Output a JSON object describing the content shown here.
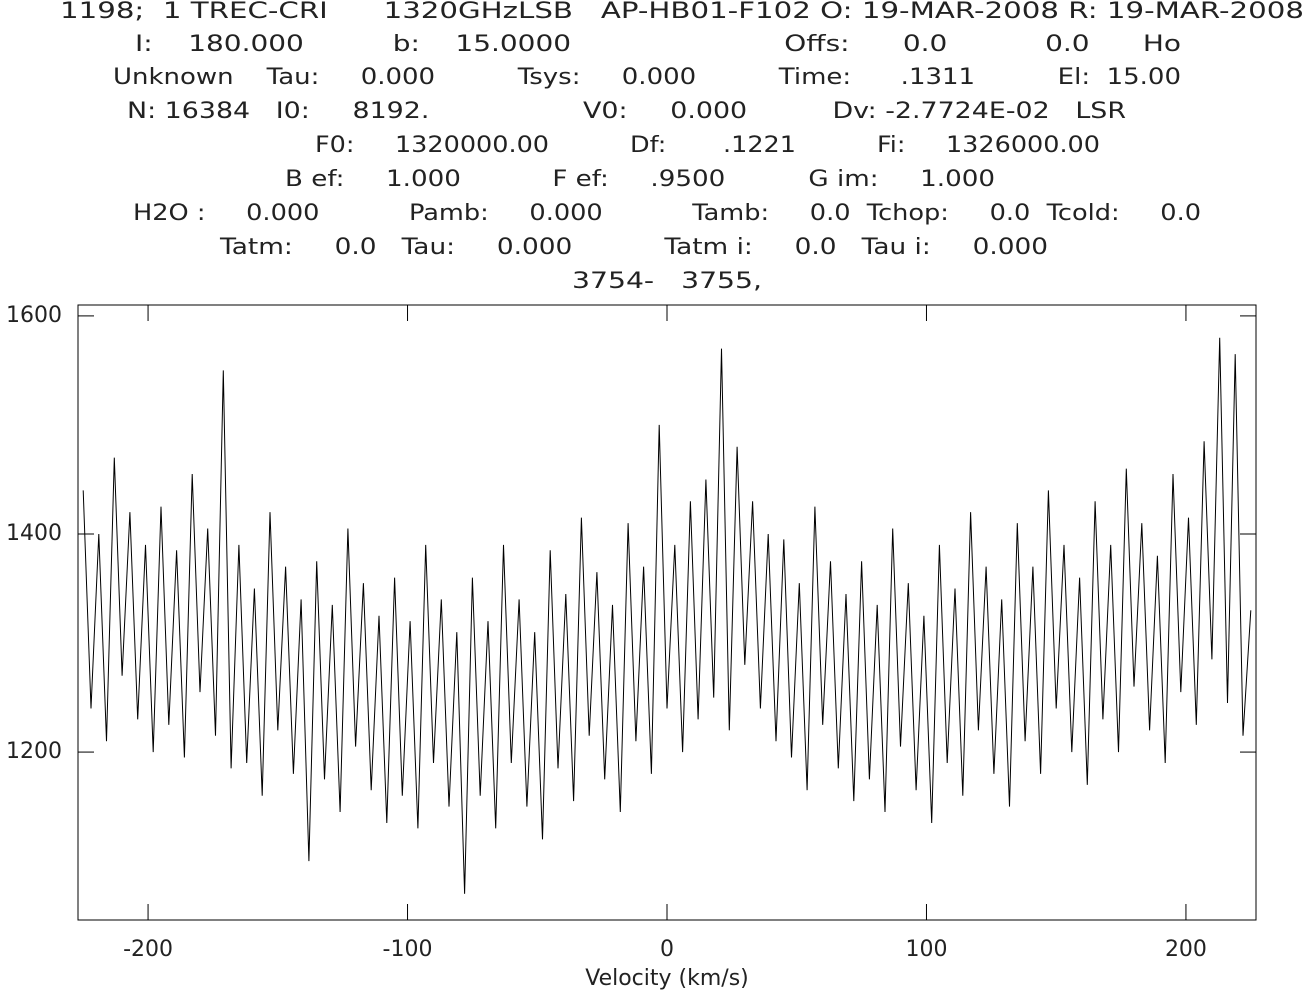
{
  "chart_data": {
    "type": "line",
    "header_lines": [
      "1198;  1 TREC-CRI      1320GHzLSB   AP-HB01-F102 O: 19-MAR-2008 R: 19-MAR-2008",
      "I:    180.000          b:    15.0000                        Offs:      0.0           0.0      Ho",
      "Unknown    Tau:     0.000          Tsys:     0.000          Time:      .1311          El:  15.00",
      "N: 16384   I0:     8192.                  V0:     0.000          Dv: -2.7724E-02   LSR",
      "F0:     1320000.00          Df:       .1221          Fi:     1326000.00",
      "B ef:     1.000           F ef:     .9500          G im:     1.000",
      "H2O :     0.000           Pamb:     0.000           Tamb:     0.0  Tchop:     0.0  Tcold:     0.0",
      "Tatm:     0.0   Tau:     0.000           Tatm i:     0.0   Tau i:     0.000",
      "3754-   3755,"
    ],
    "x_label": "Velocity (km/s)",
    "color": "#000000",
    "xlim": [
      -227,
      227
    ],
    "xticks": [
      -200,
      -100,
      0,
      100,
      200
    ],
    "ylim": [
      1046,
      1610
    ],
    "yticks": [
      1200,
      1400,
      1600
    ],
    "x": [
      -225,
      -222,
      -219,
      -216,
      -213,
      -210,
      -207,
      -204,
      -201,
      -198,
      -195,
      -192,
      -189,
      -186,
      -183,
      -180,
      -177,
      -174,
      -171,
      -168,
      -165,
      -162,
      -159,
      -156,
      -153,
      -150,
      -147,
      -144,
      -141,
      -138,
      -135,
      -132,
      -129,
      -126,
      -123,
      -120,
      -117,
      -114,
      -111,
      -108,
      -105,
      -102,
      -99,
      -96,
      -93,
      -90,
      -87,
      -84,
      -81,
      -78,
      -75,
      -72,
      -69,
      -66,
      -63,
      -60,
      -57,
      -54,
      -51,
      -48,
      -45,
      -42,
      -39,
      -36,
      -33,
      -30,
      -27,
      -24,
      -21,
      -18,
      -15,
      -12,
      -9,
      -6,
      -3,
      0,
      3,
      6,
      9,
      12,
      15,
      18,
      21,
      24,
      27,
      30,
      33,
      36,
      39,
      42,
      45,
      48,
      51,
      54,
      57,
      60,
      63,
      66,
      69,
      72,
      75,
      78,
      81,
      84,
      87,
      90,
      93,
      96,
      99,
      102,
      105,
      108,
      111,
      114,
      117,
      120,
      123,
      126,
      129,
      132,
      135,
      138,
      141,
      144,
      147,
      150,
      153,
      156,
      159,
      162,
      165,
      168,
      171,
      174,
      177,
      180,
      183,
      186,
      189,
      192,
      195,
      198,
      201,
      204,
      207,
      210,
      213,
      216,
      219,
      222,
      225
    ],
    "values": [
      1440,
      1240,
      1400,
      1210,
      1470,
      1270,
      1420,
      1230,
      1390,
      1200,
      1425,
      1225,
      1385,
      1195,
      1455,
      1255,
      1405,
      1215,
      1550,
      1185,
      1390,
      1190,
      1350,
      1160,
      1420,
      1220,
      1370,
      1180,
      1340,
      1100,
      1375,
      1175,
      1335,
      1145,
      1405,
      1205,
      1355,
      1165,
      1325,
      1135,
      1360,
      1160,
      1320,
      1130,
      1390,
      1190,
      1340,
      1150,
      1310,
      1070,
      1360,
      1160,
      1320,
      1130,
      1390,
      1190,
      1340,
      1150,
      1310,
      1120,
      1385,
      1185,
      1345,
      1155,
      1415,
      1215,
      1365,
      1175,
      1335,
      1145,
      1410,
      1210,
      1370,
      1180,
      1500,
      1240,
      1390,
      1200,
      1430,
      1230,
      1450,
      1250,
      1570,
      1220,
      1480,
      1280,
      1430,
      1240,
      1400,
      1210,
      1395,
      1195,
      1355,
      1165,
      1425,
      1225,
      1375,
      1185,
      1345,
      1155,
      1375,
      1175,
      1335,
      1145,
      1405,
      1205,
      1355,
      1165,
      1325,
      1135,
      1390,
      1190,
      1350,
      1160,
      1420,
      1220,
      1370,
      1180,
      1340,
      1150,
      1410,
      1210,
      1370,
      1180,
      1440,
      1240,
      1390,
      1200,
      1360,
      1170,
      1430,
      1230,
      1390,
      1200,
      1460,
      1260,
      1410,
      1220,
      1380,
      1190,
      1455,
      1255,
      1415,
      1225,
      1485,
      1285,
      1580,
      1245,
      1565,
      1215,
      1330
    ]
  }
}
